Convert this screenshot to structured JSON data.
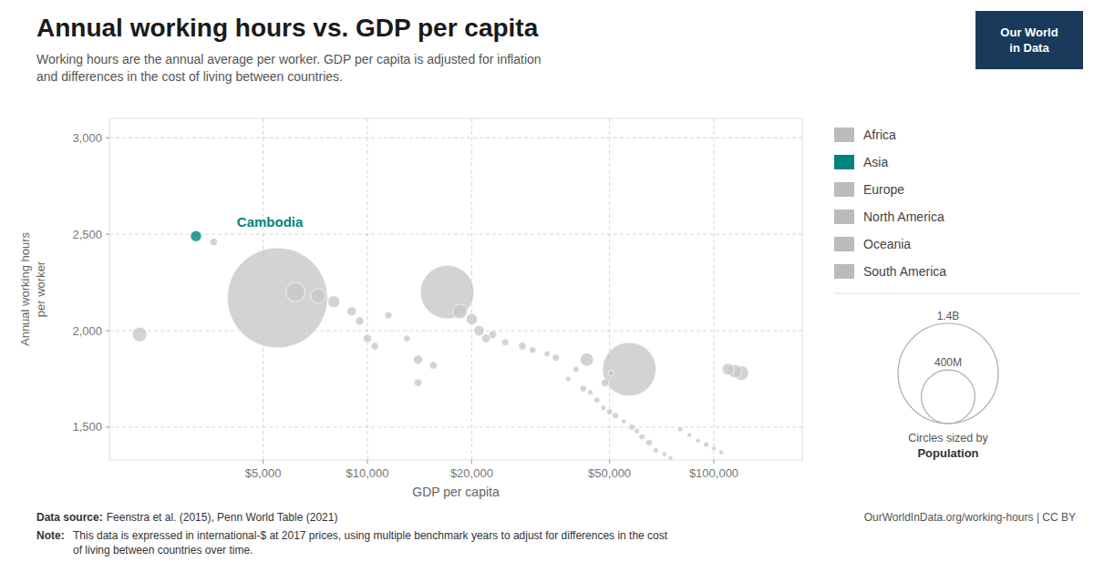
{
  "chart_data": {
    "type": "scatter",
    "title": "Annual working hours vs. GDP per capita",
    "subtitle": "Working hours are the annual average per worker. GDP per capita is adjusted for inflation\nand differences in the cost of living between countries.",
    "x_label": "GDP per capita",
    "y_label": "Annual working hours\nper worker",
    "log": "x",
    "grid": true,
    "xlim": [
      1800,
      180000
    ],
    "xticks": [
      {
        "value": 5000,
        "label": "$5,000"
      },
      {
        "value": 10000,
        "label": "$10,000"
      },
      {
        "value": 20000,
        "label": "$20,000"
      },
      {
        "value": 50000,
        "label": "$50,000"
      },
      {
        "value": 100000,
        "label": "$100,000"
      }
    ],
    "ylim": [
      1330,
      3100
    ],
    "yticks": [
      {
        "value": 1500,
        "label": "1,500"
      },
      {
        "value": 2000,
        "label": "2,000"
      },
      {
        "value": 2500,
        "label": "2,500"
      },
      {
        "value": 3000,
        "label": "3,000"
      }
    ],
    "x": [
      2200,
      3200,
      3600,
      5500,
      6200,
      7200,
      8000,
      9000,
      9500,
      10500,
      11500,
      13000,
      14000,
      17000,
      18500,
      20000,
      21000,
      22000,
      23000,
      25000,
      28000,
      30000,
      33000,
      35000,
      38000,
      40000,
      42000,
      43000,
      44000,
      46000,
      48000,
      48500,
      50000,
      50500,
      52000,
      55000,
      57000,
      58000,
      60000,
      62000,
      65000,
      68000,
      72000,
      75000,
      80000,
      85000,
      90000,
      95000,
      100000,
      105000,
      110000,
      115000,
      120000,
      10000,
      14000,
      15500
    ],
    "values": [
      1980,
      2490,
      2460,
      2170,
      2200,
      2180,
      2150,
      2100,
      2050,
      1920,
      2080,
      1960,
      1730,
      2200,
      2100,
      2060,
      2000,
      1960,
      1980,
      1940,
      1920,
      1900,
      1880,
      1860,
      1750,
      1800,
      1700,
      1850,
      1680,
      1640,
      1600,
      1730,
      1580,
      1780,
      1560,
      1530,
      1800,
      1500,
      1480,
      1450,
      1420,
      1380,
      1360,
      1340,
      1490,
      1460,
      1430,
      1410,
      1390,
      1370,
      1800,
      1790,
      1780,
      1960,
      1850,
      1820
    ],
    "sizes": [
      30000000,
      17000000,
      8000000,
      1400000000,
      50000000,
      30000000,
      20000000,
      12000000,
      10000000,
      8000000,
      7000000,
      6000000,
      8000000,
      400000000,
      30000000,
      18000000,
      15000000,
      10000000,
      9000000,
      7000000,
      8000000,
      6000000,
      5000000,
      7000000,
      4000000,
      5000000,
      6000000,
      25000000,
      4000000,
      5000000,
      4000000,
      8000000,
      5000000,
      5000000,
      6000000,
      3000000,
      400000000,
      5000000,
      4000000,
      5000000,
      6000000,
      4000000,
      3000000,
      3000000,
      4000000,
      3000000,
      3000000,
      4000000,
      3000000,
      3000000,
      20000000,
      25000000,
      30000000,
      10000000,
      12000000,
      8000000
    ],
    "colors": [
      "#c8c8c8",
      "#00847e",
      "#c8c8c8",
      "#c8c8c8",
      "#c8c8c8",
      "#c8c8c8",
      "#c8c8c8",
      "#c8c8c8",
      "#c8c8c8",
      "#c8c8c8",
      "#c8c8c8",
      "#c8c8c8",
      "#c8c8c8",
      "#c8c8c8",
      "#c8c8c8",
      "#c8c8c8",
      "#c8c8c8",
      "#c8c8c8",
      "#c8c8c8",
      "#c8c8c8",
      "#c8c8c8",
      "#c8c8c8",
      "#c8c8c8",
      "#c8c8c8",
      "#c8c8c8",
      "#c8c8c8",
      "#c8c8c8",
      "#c8c8c8",
      "#c8c8c8",
      "#c8c8c8",
      "#c8c8c8",
      "#c8c8c8",
      "#c8c8c8",
      "#c8c8c8",
      "#c8c8c8",
      "#c8c8c8",
      "#c8c8c8",
      "#c8c8c8",
      "#c8c8c8",
      "#c8c8c8",
      "#c8c8c8",
      "#c8c8c8",
      "#c8c8c8",
      "#c8c8c8",
      "#c8c8c8",
      "#c8c8c8",
      "#c8c8c8",
      "#c8c8c8",
      "#c8c8c8",
      "#c8c8c8",
      "#c8c8c8",
      "#c8c8c8",
      "#c8c8c8",
      "#c8c8c8",
      "#c8c8c8",
      "#c8c8c8"
    ],
    "annotations": [
      {
        "text": "Cambodia",
        "x": 4200,
        "y": 2560,
        "color": "#00847e"
      }
    ],
    "regions": [
      {
        "name": "Africa",
        "color": "#bbbbbb"
      },
      {
        "name": "Asia",
        "color": "#00847e"
      },
      {
        "name": "Europe",
        "color": "#bbbbbb"
      },
      {
        "name": "North America",
        "color": "#bbbbbb"
      },
      {
        "name": "Oceania",
        "color": "#bbbbbb"
      },
      {
        "name": "South America",
        "color": "#bbbbbb"
      }
    ],
    "size_legend": [
      {
        "value": 1400000000,
        "label": "1.4B"
      },
      {
        "value": 400000000,
        "label": "400M"
      }
    ],
    "size_legend_title": "Circles sized by",
    "size_legend_label": "Population",
    "logo": "Our World\nin Data",
    "source_label": "Data source:",
    "source": "Feenstra et al. (2015), Penn World Table (2021)",
    "url": "OurWorldInData.org/working-hours | CC BY",
    "note_label": "Note:",
    "note": "This data is expressed in international-$ at 2017 prices, using multiple benchmark years to adjust for differences in the cost\nof living between countries over time."
  }
}
